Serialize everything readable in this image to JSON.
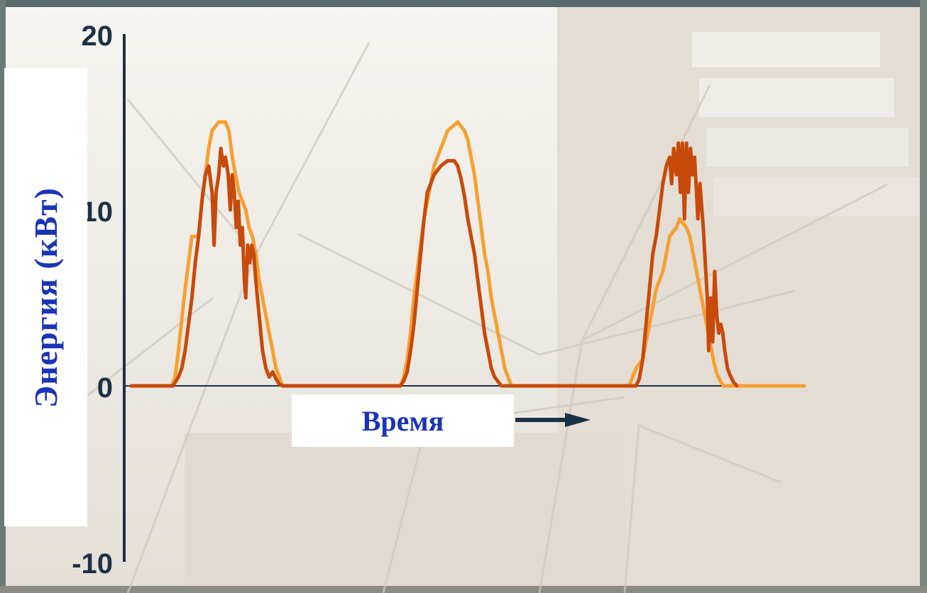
{
  "chart_data": {
    "type": "line",
    "xlabel": "Время",
    "ylabel": "Энергия (кВт)",
    "ylim": [
      -10,
      20
    ],
    "yticks": [
      {
        "value": 20,
        "label": "20"
      },
      {
        "value": 10,
        "label": "10"
      },
      {
        "value": 0,
        "label": "0"
      },
      {
        "value": -10,
        "label": "-10"
      }
    ],
    "xlim": [
      0,
      100
    ],
    "grid": false,
    "legend": "none",
    "series": [
      {
        "color": "#f5a033",
        "style": "stepped",
        "points": [
          [
            0,
            0
          ],
          [
            6,
            0
          ],
          [
            6.5,
            0.5
          ],
          [
            7,
            2
          ],
          [
            7.5,
            3.8
          ],
          [
            8,
            5.5
          ],
          [
            8.5,
            7
          ],
          [
            9,
            8.5
          ],
          [
            10,
            8.5
          ],
          [
            10.5,
            10.5
          ],
          [
            11,
            12
          ],
          [
            11.5,
            13.5
          ],
          [
            12,
            14.5
          ],
          [
            13,
            15
          ],
          [
            14,
            15
          ],
          [
            14.5,
            14.5
          ],
          [
            15,
            13
          ],
          [
            15.5,
            12
          ],
          [
            16,
            11
          ],
          [
            17,
            10
          ],
          [
            17.5,
            9
          ],
          [
            18,
            8.5
          ],
          [
            18.5,
            7.5
          ],
          [
            19,
            6
          ],
          [
            19.5,
            5
          ],
          [
            20,
            4
          ],
          [
            20.5,
            3
          ],
          [
            21,
            2
          ],
          [
            21.5,
            1
          ],
          [
            22,
            0.5
          ],
          [
            22.5,
            0
          ],
          [
            40,
            0
          ],
          [
            40.5,
            0.5
          ],
          [
            41,
            1.5
          ],
          [
            41.5,
            3
          ],
          [
            42,
            5
          ],
          [
            42.5,
            6.5
          ],
          [
            43,
            8
          ],
          [
            43.5,
            9.5
          ],
          [
            44,
            10.5
          ],
          [
            44.5,
            11.5
          ],
          [
            45,
            12.5
          ],
          [
            45.5,
            13
          ],
          [
            46,
            13.5
          ],
          [
            46.5,
            14
          ],
          [
            47,
            14.5
          ],
          [
            48.5,
            15
          ],
          [
            49.5,
            14.5
          ],
          [
            50,
            14
          ],
          [
            50.5,
            13
          ],
          [
            51,
            12
          ],
          [
            51.5,
            10.5
          ],
          [
            52,
            9
          ],
          [
            52.5,
            7.5
          ],
          [
            53,
            6.5
          ],
          [
            53.5,
            5
          ],
          [
            54,
            4
          ],
          [
            54.5,
            3
          ],
          [
            55,
            2
          ],
          [
            55.5,
            1
          ],
          [
            56,
            0.5
          ],
          [
            56.5,
            0
          ],
          [
            74,
            0
          ],
          [
            74.5,
            0.5
          ],
          [
            75,
            1
          ],
          [
            76,
            1.5
          ],
          [
            76.5,
            2.5
          ],
          [
            77,
            3.5
          ],
          [
            77.5,
            4.5
          ],
          [
            78,
            5.5
          ],
          [
            79,
            6.5
          ],
          [
            79.5,
            7.5
          ],
          [
            80,
            8.5
          ],
          [
            81,
            9
          ],
          [
            81.5,
            9.5
          ],
          [
            82.5,
            9
          ],
          [
            83,
            8.5
          ],
          [
            83.5,
            7.5
          ],
          [
            84,
            6.5
          ],
          [
            84.5,
            5.5
          ],
          [
            85,
            4.5
          ],
          [
            85.5,
            3.5
          ],
          [
            86,
            2.5
          ],
          [
            86.5,
            1.5
          ],
          [
            87,
            0.7
          ],
          [
            87.5,
            0.3
          ],
          [
            88,
            0
          ],
          [
            100,
            0
          ]
        ]
      },
      {
        "color": "#c84a0a",
        "style": "noisy",
        "points": [
          [
            0,
            0
          ],
          [
            6.2,
            0
          ],
          [
            7,
            0.5
          ],
          [
            7.5,
            1
          ],
          [
            8,
            2
          ],
          [
            8.5,
            3.5
          ],
          [
            9,
            5
          ],
          [
            9.5,
            7
          ],
          [
            10,
            8.5
          ],
          [
            10.5,
            10.5
          ],
          [
            11,
            12
          ],
          [
            11.5,
            12.5
          ],
          [
            12,
            11
          ],
          [
            12.3,
            8
          ],
          [
            12.6,
            11
          ],
          [
            13,
            12
          ],
          [
            13.3,
            13.5
          ],
          [
            13.7,
            12.5
          ],
          [
            14,
            13
          ],
          [
            14.4,
            12
          ],
          [
            14.7,
            10
          ],
          [
            15,
            12
          ],
          [
            15.3,
            11
          ],
          [
            15.6,
            9
          ],
          [
            15.9,
            10.5
          ],
          [
            16.2,
            8
          ],
          [
            16.5,
            9
          ],
          [
            16.8,
            6
          ],
          [
            17,
            5
          ],
          [
            17.3,
            8
          ],
          [
            17.6,
            7
          ],
          [
            17.9,
            8
          ],
          [
            18.2,
            7.5
          ],
          [
            18.5,
            6
          ],
          [
            19,
            4
          ],
          [
            19.5,
            2
          ],
          [
            20,
            1
          ],
          [
            20.5,
            0.5
          ],
          [
            21,
            0.8
          ],
          [
            21.5,
            0.4
          ],
          [
            22,
            0.1
          ],
          [
            22.5,
            0
          ],
          [
            40,
            0
          ],
          [
            40.5,
            0.3
          ],
          [
            41,
            0.8
          ],
          [
            41.5,
            2
          ],
          [
            42,
            3.5
          ],
          [
            42.5,
            5.5
          ],
          [
            43,
            7.5
          ],
          [
            43.5,
            9.5
          ],
          [
            44,
            11
          ],
          [
            45,
            12
          ],
          [
            46,
            12.5
          ],
          [
            47,
            12.8
          ],
          [
            48,
            12.8
          ],
          [
            48.5,
            12.5
          ],
          [
            49,
            11.8
          ],
          [
            49.5,
            10.8
          ],
          [
            50,
            9.5
          ],
          [
            50.5,
            8.5
          ],
          [
            51,
            7.5
          ],
          [
            51.5,
            6
          ],
          [
            52,
            4.5
          ],
          [
            52.5,
            3
          ],
          [
            53,
            2
          ],
          [
            53.5,
            1
          ],
          [
            54,
            0.5
          ],
          [
            55,
            0
          ],
          [
            75,
            0
          ],
          [
            75.5,
            0.4
          ],
          [
            76,
            1.5
          ],
          [
            76.5,
            3.5
          ],
          [
            77,
            5.5
          ],
          [
            77.5,
            7.5
          ],
          [
            78,
            8.5
          ],
          [
            78.5,
            10
          ],
          [
            79,
            11.5
          ],
          [
            79.5,
            12.5
          ],
          [
            80,
            13
          ],
          [
            80.3,
            11.5
          ],
          [
            80.6,
            13.5
          ],
          [
            81,
            12
          ],
          [
            81.3,
            13.8
          ],
          [
            81.6,
            11
          ],
          [
            81.9,
            13.8
          ],
          [
            82.2,
            9.5
          ],
          [
            82.5,
            13.8
          ],
          [
            82.8,
            11
          ],
          [
            83.1,
            13.5
          ],
          [
            83.4,
            12
          ],
          [
            83.7,
            13
          ],
          [
            84,
            11
          ],
          [
            84.2,
            9.5
          ],
          [
            84.5,
            11.5
          ],
          [
            84.8,
            10
          ],
          [
            85,
            9
          ],
          [
            85.3,
            7
          ],
          [
            85.6,
            5
          ],
          [
            85.8,
            2
          ],
          [
            86.1,
            5
          ],
          [
            86.4,
            2.5
          ],
          [
            86.7,
            6.5
          ],
          [
            87,
            4
          ],
          [
            87.3,
            3
          ],
          [
            87.6,
            3.5
          ],
          [
            87.9,
            3
          ],
          [
            88.2,
            2
          ],
          [
            88.6,
            1
          ],
          [
            89,
            0.6
          ],
          [
            89.5,
            0.2
          ],
          [
            90,
            0
          ]
        ]
      }
    ]
  }
}
